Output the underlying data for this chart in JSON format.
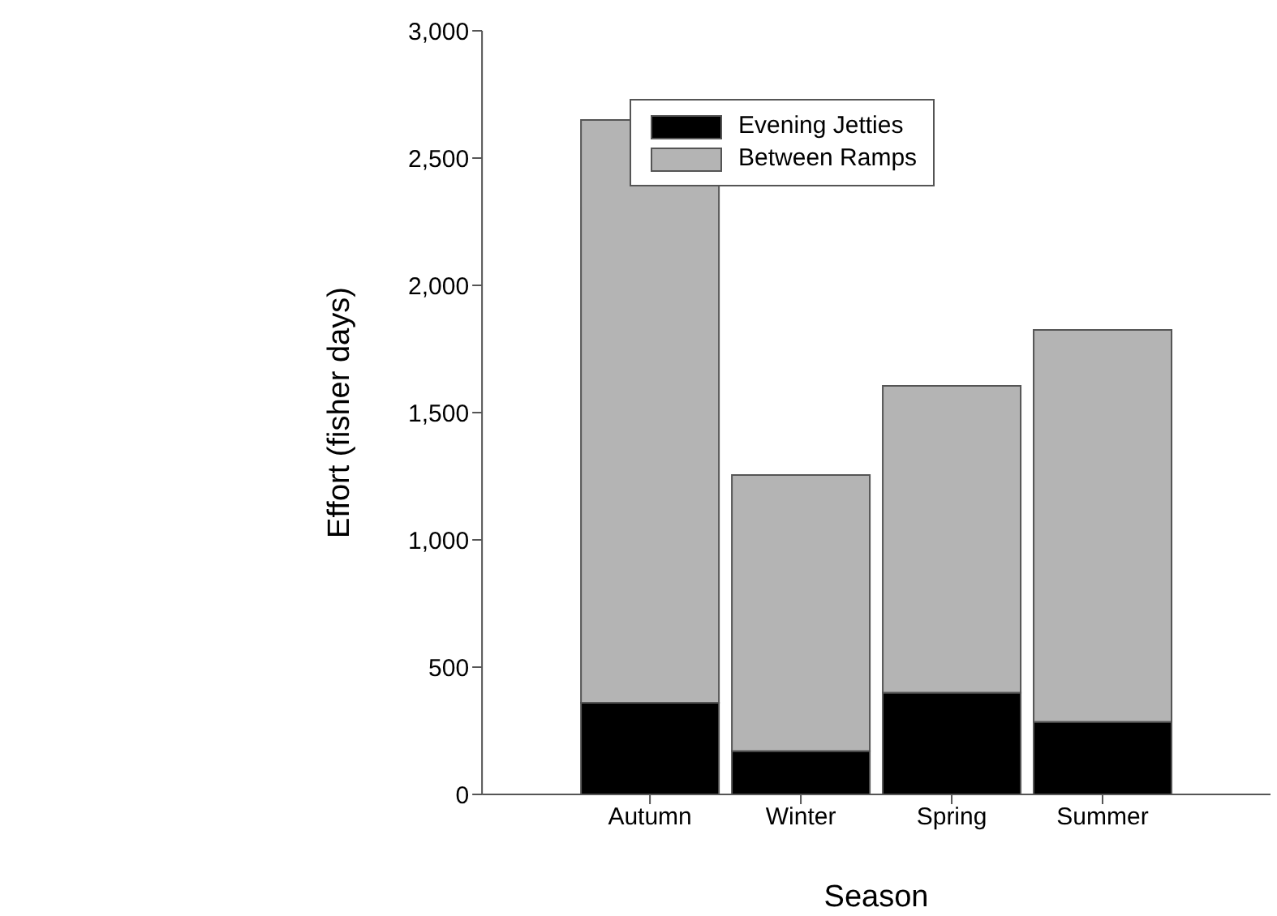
{
  "chart_data": {
    "type": "bar",
    "stacked": true,
    "xlabel": "Season",
    "ylabel": "Effort (fisher days)",
    "categories": [
      "Autumn",
      "Winter",
      "Spring",
      "Summer"
    ],
    "series": [
      {
        "name": "Evening Jetties",
        "color": "#000000",
        "values": [
          360,
          170,
          400,
          285
        ]
      },
      {
        "name": "Between Ramps",
        "color": "#b4b4b4",
        "values": [
          2290,
          1085,
          1205,
          1540
        ]
      }
    ],
    "ylim": [
      0,
      3000
    ],
    "yticks": [
      0,
      {
        "value": 500,
        "label": "500"
      },
      {
        "value": 1000,
        "label": "1,000"
      },
      {
        "value": 1500,
        "label": "1,500"
      },
      {
        "value": 2000,
        "label": "2,000"
      },
      {
        "value": 2500,
        "label": "2,500"
      },
      {
        "value": 3000,
        "label": "3,000"
      }
    ],
    "grid": false,
    "legend": "top"
  }
}
